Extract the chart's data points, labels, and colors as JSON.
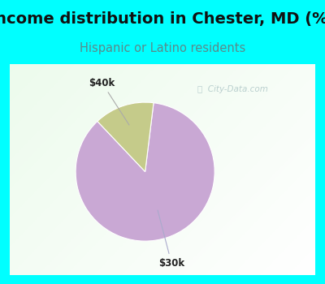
{
  "title": "Income distribution in Chester, MD (%)",
  "subtitle": "Hispanic or Latino residents",
  "title_color": "#111111",
  "subtitle_color": "#5a8a8a",
  "top_bg_color": "#00FFFF",
  "border_color": "#00FFFF",
  "slices": [
    {
      "label": "$30k",
      "value": 86,
      "color": "#C9A8D4"
    },
    {
      "label": "$40k",
      "value": 14,
      "color": "#C5CB8A"
    }
  ],
  "label_font_size": 8.5,
  "title_font_size": 14,
  "subtitle_font_size": 10.5,
  "watermark": "City-Data.com",
  "start_angle": 90
}
